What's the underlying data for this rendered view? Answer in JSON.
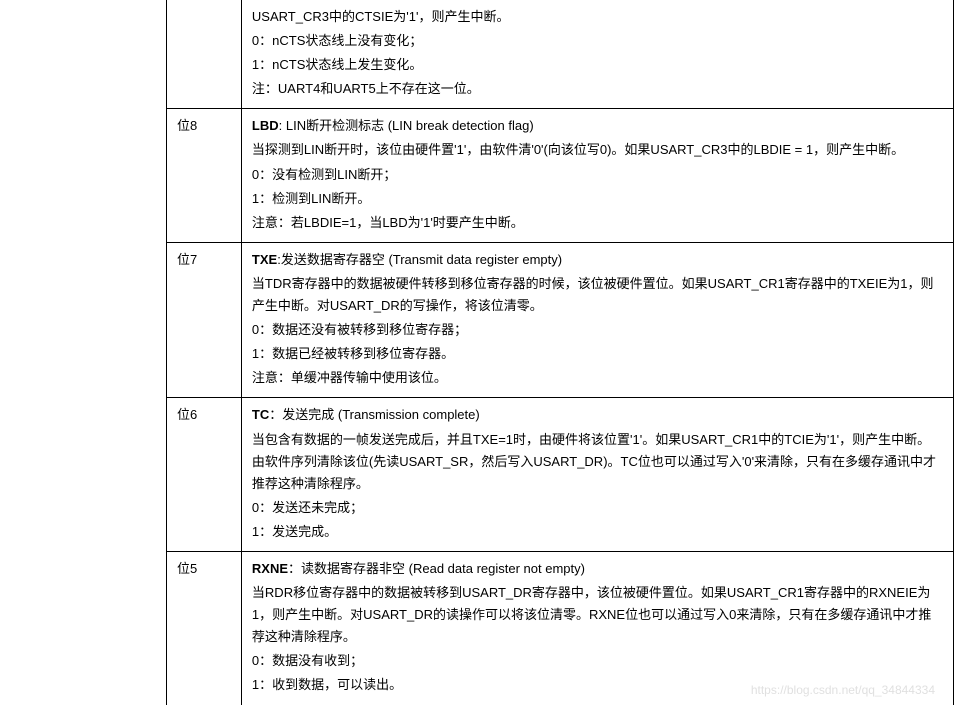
{
  "rows": [
    {
      "bit": "",
      "title_prefix": "",
      "title_name": "",
      "title_desc": "",
      "lines": [
        "USART_CR3中的CTSIE为'1'，则产生中断。",
        "0：nCTS状态线上没有变化；",
        "1：nCTS状态线上发生变化。",
        "注：UART4和UART5上不存在这一位。"
      ]
    },
    {
      "bit": "位8",
      "title_prefix": "LBD",
      "title_sep": ": ",
      "title_desc": "LIN断开检测标志 (LIN break detection flag)",
      "lines": [
        "当探测到LIN断开时，该位由硬件置'1'，由软件清'0'(向该位写0)。如果USART_CR3中的LBDIE = 1，则产生中断。",
        "0：没有检测到LIN断开；",
        "1：检测到LIN断开。",
        "注意：若LBDIE=1，当LBD为'1'时要产生中断。"
      ]
    },
    {
      "bit": "位7",
      "title_prefix": "TXE",
      "title_sep": ":",
      "title_desc": "发送数据寄存器空 (Transmit data register empty)",
      "lines": [
        "当TDR寄存器中的数据被硬件转移到移位寄存器的时候，该位被硬件置位。如果USART_CR1寄存器中的TXEIE为1，则产生中断。对USART_DR的写操作，将该位清零。",
        "0：数据还没有被转移到移位寄存器；",
        "1：数据已经被转移到移位寄存器。",
        "注意：单缓冲器传输中使用该位。"
      ]
    },
    {
      "bit": "位6",
      "title_prefix": "TC",
      "title_sep": "：",
      "title_desc": "发送完成 (Transmission complete)",
      "lines": [
        "当包含有数据的一帧发送完成后，并且TXE=1时，由硬件将该位置'1'。如果USART_CR1中的TCIE为'1'，则产生中断。由软件序列清除该位(先读USART_SR，然后写入USART_DR)。TC位也可以通过写入'0'来清除，只有在多缓存通讯中才推荐这种清除程序。",
        "0：发送还未完成；",
        "1：发送完成。"
      ]
    },
    {
      "bit": "位5",
      "title_prefix": "RXNE",
      "title_sep": "：",
      "title_desc": "读数据寄存器非空 (Read data register not empty)",
      "lines": [
        "当RDR移位寄存器中的数据被转移到USART_DR寄存器中，该位被硬件置位。如果USART_CR1寄存器中的RXNEIE为1，则产生中断。对USART_DR的读操作可以将该位清零。RXNE位也可以通过写入0来清除，只有在多缓存通讯中才推荐这种清除程序。",
        "0：数据没有收到；",
        "1：收到数据，可以读出。"
      ]
    }
  ],
  "watermark": "https://blog.csdn.net/qq_34844334"
}
